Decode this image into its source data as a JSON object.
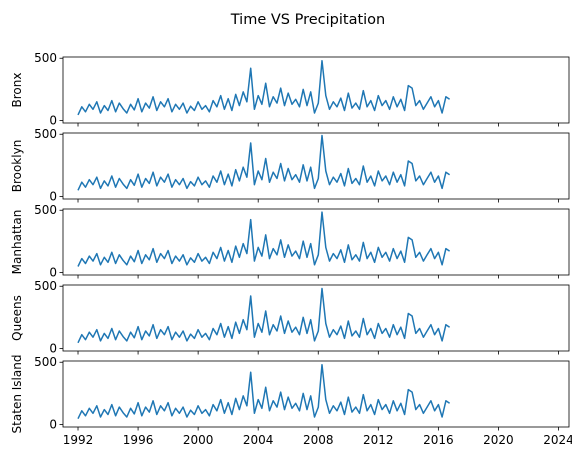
{
  "figure": {
    "title": "Time VS Precipitation"
  },
  "colors": {
    "series": "#1f77b4"
  },
  "chart_data": [
    {
      "type": "line",
      "ylabel": "Bronx",
      "xlim": [
        1991.0,
        2024.7
      ],
      "ylim": [
        -20,
        510
      ],
      "yticks": [
        0,
        500
      ],
      "xticks": [
        1992,
        1996,
        2000,
        2004,
        2008,
        2012,
        2016,
        2020,
        2024
      ],
      "xtick_labels_visible": false,
      "series": [
        {
          "x_start": 1992.0,
          "x_step": 0.25,
          "values": [
            45,
            110,
            70,
            130,
            90,
            150,
            60,
            120,
            80,
            160,
            70,
            140,
            95,
            60,
            130,
            85,
            175,
            70,
            140,
            100,
            190,
            80,
            150,
            110,
            175,
            70,
            130,
            90,
            140,
            60,
            115,
            80,
            150,
            90,
            120,
            70,
            160,
            110,
            200,
            90,
            175,
            80,
            210,
            120,
            230,
            150,
            420,
            90,
            200,
            130,
            300,
            110,
            190,
            140,
            260,
            120,
            220,
            130,
            170,
            110,
            250,
            120,
            230,
            60,
            140,
            480,
            200,
            90,
            150,
            110,
            180,
            80,
            220,
            100,
            140,
            90,
            240,
            110,
            160,
            80,
            200,
            120,
            160,
            90,
            190,
            110,
            170,
            80,
            280,
            260,
            120,
            160,
            90,
            140,
            190,
            110,
            160,
            60,
            190,
            170
          ]
        }
      ]
    },
    {
      "type": "line",
      "ylabel": "Brooklyn",
      "xlim": [
        1991.0,
        2024.7
      ],
      "ylim": [
        -20,
        510
      ],
      "yticks": [
        0,
        500
      ],
      "xticks": [
        1992,
        1996,
        2000,
        2004,
        2008,
        2012,
        2016,
        2020,
        2024
      ],
      "xtick_labels_visible": false,
      "series": [
        {
          "x_start": 1992.0,
          "x_step": 0.25,
          "values": [
            50,
            115,
            75,
            135,
            95,
            155,
            65,
            125,
            85,
            165,
            75,
            145,
            100,
            65,
            135,
            90,
            180,
            75,
            145,
            105,
            195,
            85,
            155,
            115,
            180,
            75,
            135,
            95,
            145,
            65,
            120,
            85,
            155,
            95,
            125,
            75,
            165,
            115,
            205,
            95,
            180,
            85,
            215,
            125,
            235,
            155,
            430,
            95,
            205,
            135,
            305,
            115,
            195,
            145,
            265,
            125,
            225,
            135,
            175,
            115,
            255,
            125,
            235,
            65,
            145,
            490,
            205,
            95,
            155,
            115,
            185,
            85,
            225,
            105,
            145,
            95,
            245,
            115,
            165,
            85,
            205,
            125,
            165,
            95,
            195,
            115,
            175,
            85,
            285,
            265,
            125,
            165,
            95,
            145,
            195,
            115,
            165,
            65,
            195,
            175
          ]
        }
      ]
    },
    {
      "type": "line",
      "ylabel": "Manhattan",
      "xlim": [
        1991.0,
        2024.7
      ],
      "ylim": [
        -20,
        510
      ],
      "yticks": [
        0,
        500
      ],
      "xticks": [
        1992,
        1996,
        2000,
        2004,
        2008,
        2012,
        2016,
        2020,
        2024
      ],
      "xtick_labels_visible": false,
      "series": [
        {
          "x_start": 1992.0,
          "x_step": 0.25,
          "values": [
            48,
            112,
            72,
            132,
            92,
            152,
            62,
            122,
            82,
            162,
            72,
            142,
            97,
            62,
            132,
            87,
            177,
            72,
            142,
            102,
            192,
            82,
            152,
            112,
            177,
            72,
            132,
            92,
            142,
            62,
            117,
            82,
            152,
            92,
            122,
            72,
            162,
            112,
            202,
            92,
            177,
            82,
            212,
            122,
            232,
            152,
            425,
            92,
            202,
            132,
            302,
            112,
            192,
            142,
            262,
            122,
            222,
            132,
            172,
            112,
            252,
            122,
            232,
            62,
            142,
            485,
            202,
            92,
            152,
            112,
            182,
            82,
            222,
            102,
            142,
            92,
            242,
            112,
            162,
            82,
            202,
            122,
            162,
            92,
            192,
            112,
            172,
            82,
            282,
            262,
            122,
            162,
            92,
            142,
            192,
            112,
            162,
            62,
            192,
            172
          ]
        }
      ]
    },
    {
      "type": "line",
      "ylabel": "Queens",
      "xlim": [
        1991.0,
        2024.7
      ],
      "ylim": [
        -20,
        510
      ],
      "yticks": [
        0,
        500
      ],
      "xticks": [
        1992,
        1996,
        2000,
        2004,
        2008,
        2012,
        2016,
        2020,
        2024
      ],
      "xtick_labels_visible": false,
      "series": [
        {
          "x_start": 1992.0,
          "x_step": 0.25,
          "values": [
            46,
            111,
            71,
            131,
            91,
            151,
            61,
            121,
            81,
            161,
            71,
            141,
            96,
            61,
            131,
            86,
            176,
            71,
            141,
            101,
            191,
            81,
            151,
            111,
            176,
            71,
            131,
            91,
            141,
            61,
            116,
            81,
            151,
            91,
            121,
            71,
            161,
            111,
            201,
            91,
            176,
            81,
            211,
            121,
            231,
            151,
            422,
            91,
            201,
            131,
            301,
            111,
            191,
            141,
            261,
            121,
            221,
            131,
            171,
            111,
            251,
            121,
            231,
            61,
            141,
            482,
            201,
            91,
            151,
            111,
            181,
            81,
            221,
            101,
            141,
            91,
            241,
            111,
            161,
            81,
            201,
            121,
            161,
            91,
            191,
            111,
            171,
            81,
            281,
            261,
            121,
            161,
            91,
            141,
            191,
            111,
            161,
            61,
            191,
            171
          ]
        }
      ]
    },
    {
      "type": "line",
      "ylabel": "Staten Island",
      "xlim": [
        1991.0,
        2024.7
      ],
      "ylim": [
        -20,
        510
      ],
      "yticks": [
        0,
        500
      ],
      "xticks": [
        1992,
        1996,
        2000,
        2004,
        2008,
        2012,
        2016,
        2020,
        2024
      ],
      "xtick_labels_visible": true,
      "series": [
        {
          "x_start": 1992.0,
          "x_step": 0.25,
          "values": [
            47,
            110,
            70,
            130,
            90,
            150,
            60,
            120,
            80,
            160,
            70,
            140,
            95,
            60,
            130,
            85,
            175,
            70,
            140,
            100,
            190,
            80,
            150,
            110,
            175,
            70,
            130,
            90,
            140,
            60,
            115,
            80,
            150,
            90,
            120,
            70,
            160,
            110,
            200,
            90,
            175,
            80,
            210,
            120,
            230,
            150,
            420,
            90,
            200,
            130,
            300,
            110,
            190,
            140,
            260,
            120,
            220,
            130,
            170,
            110,
            250,
            120,
            230,
            60,
            140,
            480,
            200,
            90,
            150,
            110,
            180,
            80,
            220,
            100,
            140,
            90,
            240,
            110,
            160,
            80,
            200,
            120,
            160,
            90,
            190,
            110,
            170,
            80,
            280,
            260,
            120,
            160,
            90,
            140,
            190,
            110,
            160,
            60,
            190,
            170
          ]
        }
      ]
    }
  ]
}
